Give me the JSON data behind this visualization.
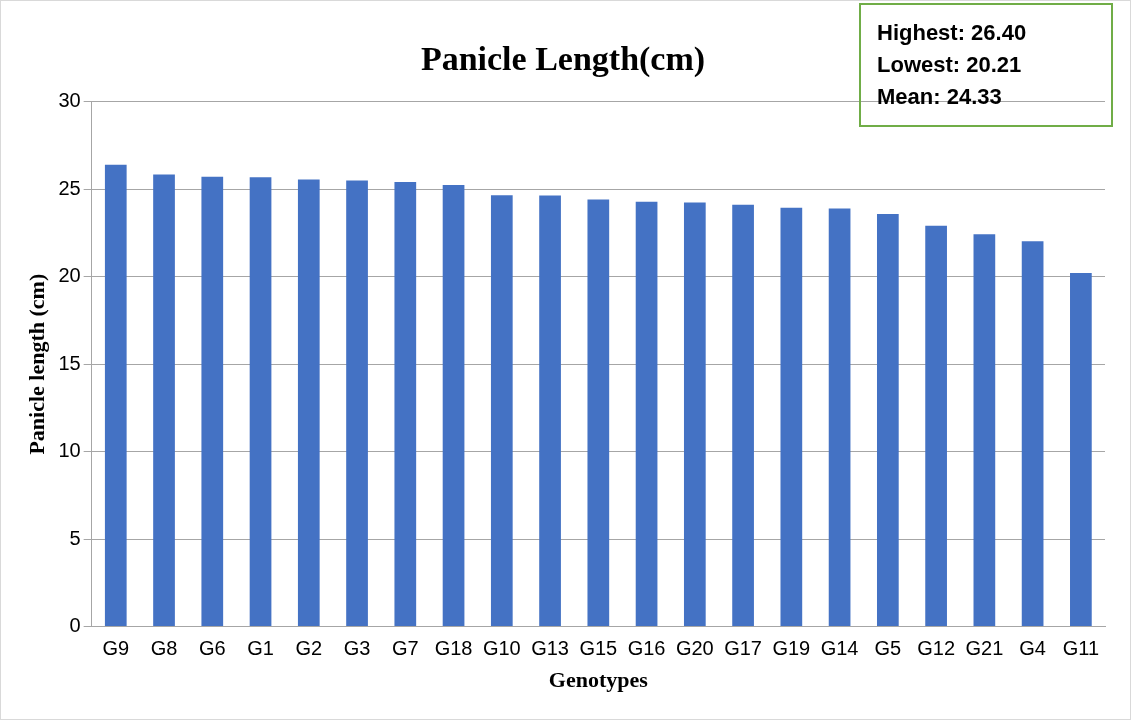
{
  "chart_data": {
    "type": "bar",
    "title": "Panicle Length(cm)",
    "xlabel": "Genotypes",
    "ylabel": "Panicle length (cm)",
    "categories": [
      "G9",
      "G8",
      "G6",
      "G1",
      "G2",
      "G3",
      "G7",
      "G18",
      "G10",
      "G13",
      "G15",
      "G16",
      "G20",
      "G17",
      "G19",
      "G14",
      "G5",
      "G12",
      "G21",
      "G4",
      "G11"
    ],
    "values": [
      26.4,
      25.84,
      25.72,
      25.68,
      25.56,
      25.5,
      25.42,
      25.24,
      24.66,
      24.64,
      24.42,
      24.28,
      24.24,
      24.12,
      23.94,
      23.9,
      23.59,
      22.91,
      22.43,
      22.03,
      20.21
    ],
    "color": "#4472c4",
    "ylim": [
      0,
      30
    ],
    "yticks": [
      0,
      5,
      10,
      15,
      20,
      25,
      30
    ],
    "grid": "y",
    "legend": false,
    "annotations": [
      "Highest: 26.40",
      "Lowest: 20.21",
      "Mean: 24.33"
    ]
  }
}
